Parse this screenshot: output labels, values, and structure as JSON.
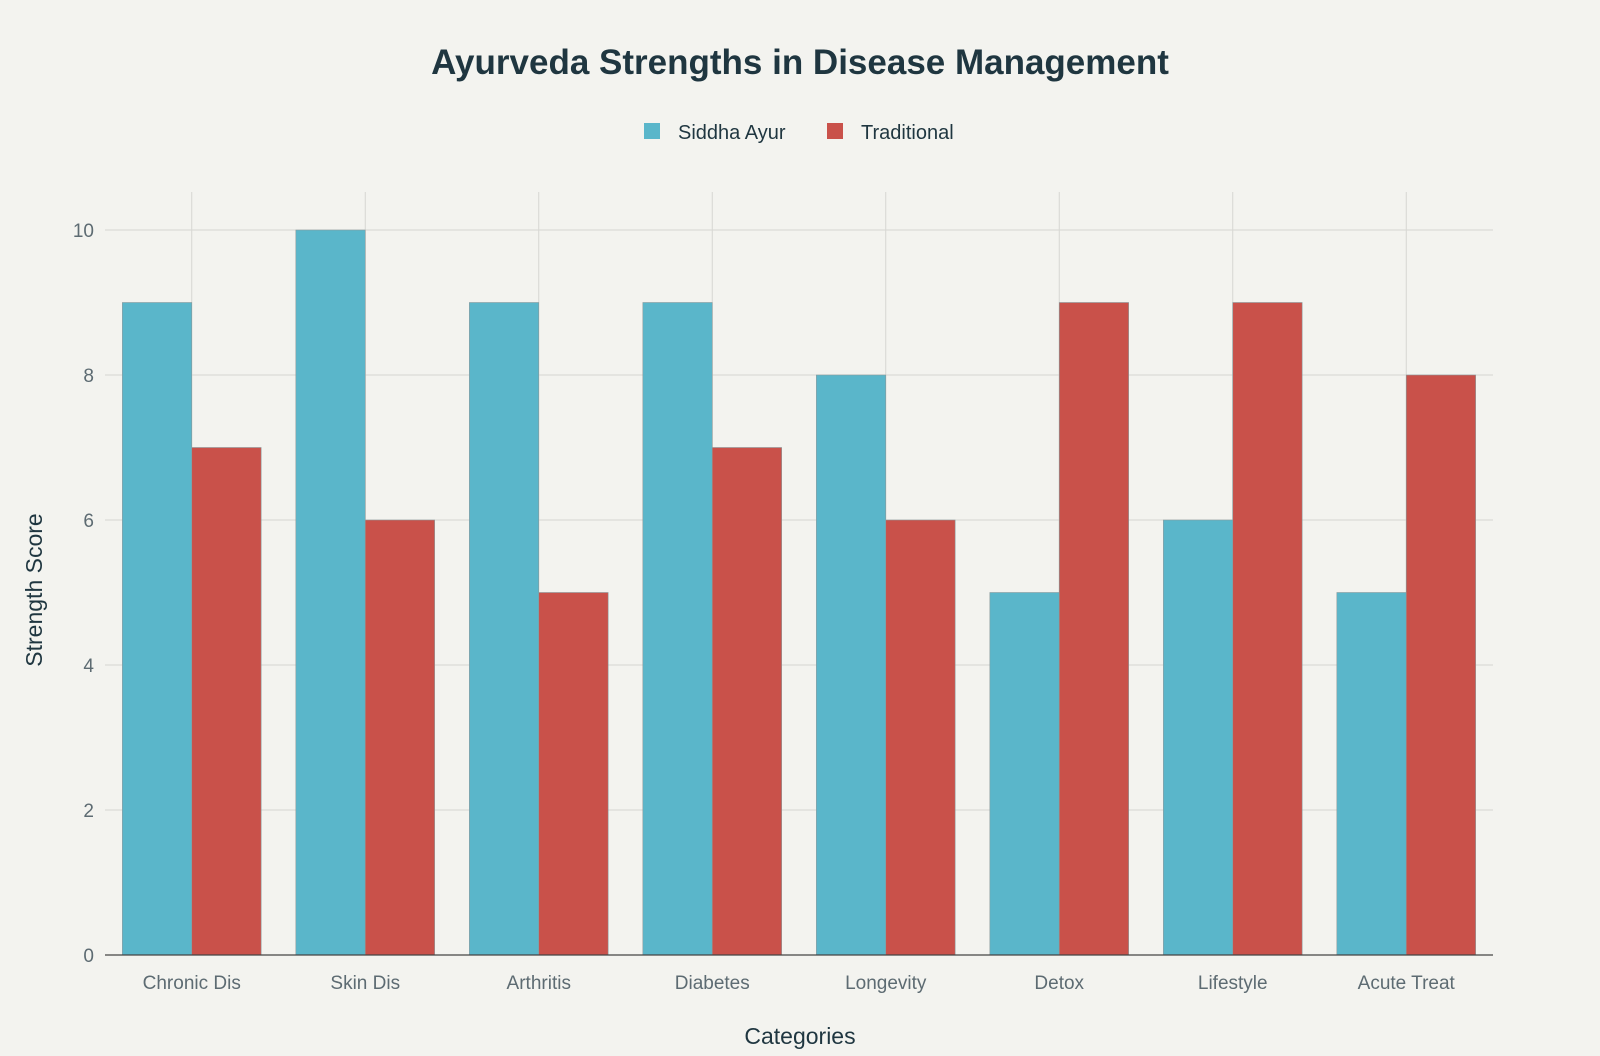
{
  "chart_data": {
    "type": "bar",
    "title": "Ayurveda Strengths in Disease Management",
    "xlabel": "Categories",
    "ylabel": "Strength Score",
    "categories": [
      "Chronic Dis",
      "Skin Dis",
      "Arthritis",
      "Diabetes",
      "Longevity",
      "Detox",
      "Lifestyle",
      "Acute Treat"
    ],
    "series": [
      {
        "name": "Siddha Ayur",
        "color": "#5ab6ca",
        "values": [
          9,
          10,
          9,
          9,
          8,
          5,
          6,
          5
        ]
      },
      {
        "name": "Traditional",
        "color": "#c9514a",
        "values": [
          7,
          6,
          5,
          7,
          6,
          9,
          9,
          8
        ]
      }
    ],
    "ylim": [
      0,
      10.5
    ],
    "yticks": [
      "0",
      "2",
      "4",
      "6",
      "8",
      "10"
    ],
    "grid": true,
    "legend_position": "top-center"
  }
}
